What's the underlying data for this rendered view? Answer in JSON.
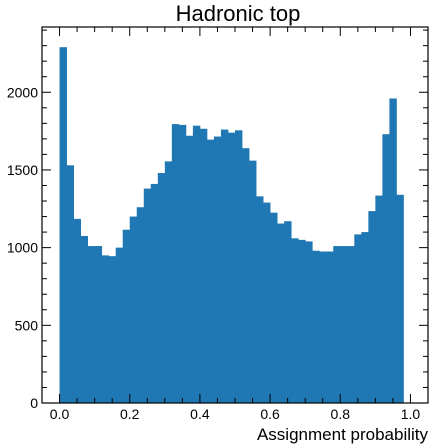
{
  "chart_data": {
    "type": "bar",
    "title": "Hadronic top",
    "xlabel": "Assignment probability",
    "ylabel": "",
    "xlim": [
      -0.05,
      1.05
    ],
    "ylim": [
      0,
      2420
    ],
    "bin_width": 0.02,
    "x_ticks": [
      0.0,
      0.2,
      0.4,
      0.6,
      0.8,
      1.0
    ],
    "x_tick_labels": [
      "0.0",
      "0.2",
      "0.4",
      "0.6",
      "0.8",
      "1.0"
    ],
    "y_ticks": [
      0,
      500,
      1000,
      1500,
      2000
    ],
    "y_tick_labels": [
      "0",
      "500",
      "1000",
      "1500",
      "2000"
    ],
    "color": "#1f77b4",
    "bin_edges_start": [
      0.0,
      0.02,
      0.04,
      0.06,
      0.08,
      0.1,
      0.12,
      0.14,
      0.16,
      0.18,
      0.2,
      0.22,
      0.24,
      0.26,
      0.28,
      0.3,
      0.32,
      0.34,
      0.36,
      0.38,
      0.4,
      0.42,
      0.44,
      0.46,
      0.48,
      0.5,
      0.52,
      0.54,
      0.56,
      0.58,
      0.6,
      0.62,
      0.64,
      0.66,
      0.68,
      0.7,
      0.72,
      0.74,
      0.76,
      0.78,
      0.8,
      0.82,
      0.84,
      0.86,
      0.88,
      0.9,
      0.92,
      0.94,
      0.96,
      0.98
    ],
    "values": [
      2290,
      1530,
      1185,
      1075,
      1010,
      1010,
      950,
      945,
      1000,
      1115,
      1200,
      1260,
      1380,
      1410,
      1480,
      1555,
      1795,
      1790,
      1720,
      1785,
      1765,
      1695,
      1715,
      1760,
      1740,
      1755,
      1640,
      1560,
      1330,
      1290,
      1225,
      1155,
      1170,
      1060,
      1050,
      1040,
      980,
      975,
      975,
      1010,
      1010,
      1010,
      1085,
      1100,
      1235,
      1335,
      1730,
      1960,
      1340,
      0
    ]
  }
}
